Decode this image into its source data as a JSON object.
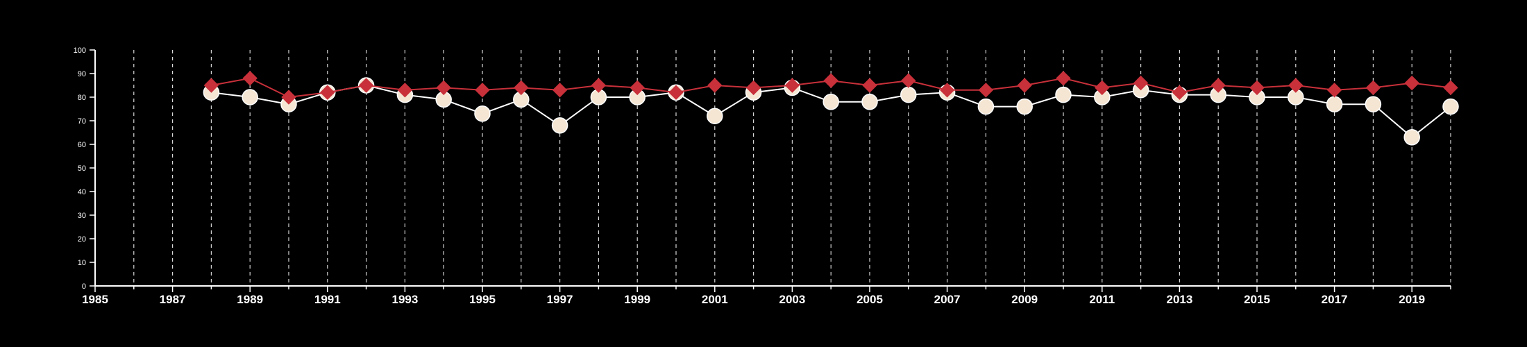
{
  "chart_data": {
    "type": "line",
    "title": "",
    "xlabel": "",
    "ylabel": "",
    "xlim": [
      1985,
      2020
    ],
    "ylim": [
      0,
      100
    ],
    "x_ticks": [
      1985,
      1987,
      1989,
      1991,
      1993,
      1995,
      1997,
      1999,
      2001,
      2003,
      2005,
      2007,
      2009,
      2011,
      2013,
      2015,
      2017,
      2019
    ],
    "y_ticks": [
      0,
      10,
      20,
      30,
      40,
      50,
      60,
      70,
      80,
      90,
      100
    ],
    "vertical_gridlines": "dashed, every year 1986-2020",
    "legend": "none",
    "x": [
      1988,
      1989,
      1990,
      1991,
      1992,
      1993,
      1994,
      1995,
      1996,
      1997,
      1998,
      1999,
      2000,
      2001,
      2002,
      2003,
      2004,
      2005,
      2006,
      2007,
      2008,
      2009,
      2010,
      2011,
      2012,
      2013,
      2014,
      2015,
      2016,
      2017,
      2018,
      2019,
      2020
    ],
    "series": [
      {
        "color": "#f5e6d3",
        "marker": "circle",
        "line_color": "#ffffff",
        "values": [
          82,
          80,
          77,
          82,
          85,
          81,
          79,
          73,
          79,
          68,
          80,
          80,
          82,
          72,
          82,
          84,
          78,
          78,
          81,
          82,
          76,
          76,
          81,
          80,
          83,
          81,
          81,
          80,
          80,
          77,
          77,
          63,
          76
        ]
      },
      {
        "color": "#c8303a",
        "marker": "diamond",
        "line_color": "#c8303a",
        "values": [
          85,
          88,
          80,
          82,
          85,
          83,
          84,
          83,
          84,
          83,
          85,
          84,
          82,
          85,
          84,
          85,
          87,
          85,
          87,
          83,
          83,
          85,
          88,
          84,
          86,
          82,
          85,
          84,
          85,
          83,
          84,
          86,
          84
        ]
      }
    ]
  }
}
